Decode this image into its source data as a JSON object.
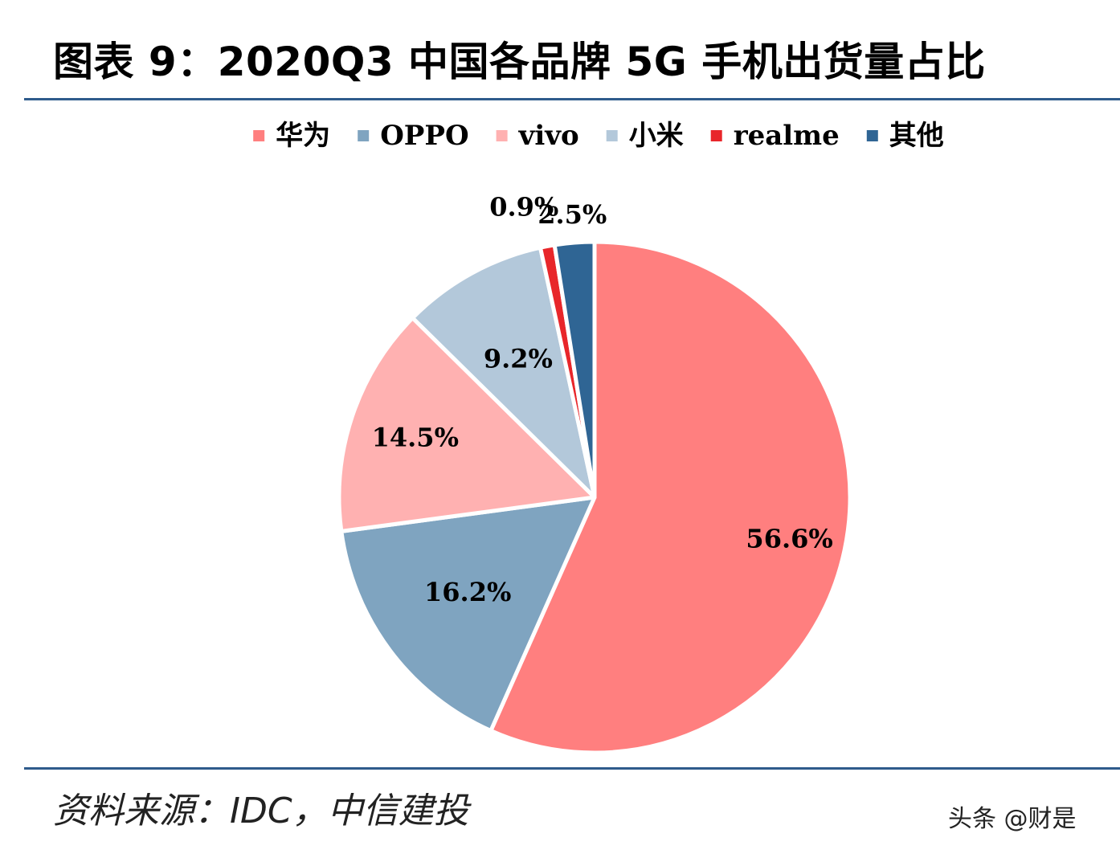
{
  "title": "图表 9：2020Q3 中国各品牌 5G 手机出货量占比",
  "source": "资料来源：IDC，中信建投",
  "watermark": "头条 @财是",
  "chart_data": {
    "type": "pie",
    "title": "图表 9：2020Q3 中国各品牌 5G 手机出货量占比",
    "legend_position": "top",
    "start_angle_deg": 0,
    "direction": "clockwise",
    "slices": [
      {
        "name": "华为",
        "value": 56.6,
        "label": "56.6%",
        "color": "#ff7f7f"
      },
      {
        "name": "OPPO",
        "value": 16.2,
        "label": "16.2%",
        "color": "#7fa4c0"
      },
      {
        "name": "vivo",
        "value": 14.5,
        "label": "14.5%",
        "color": "#ffb1b1"
      },
      {
        "name": "小米",
        "value": 9.2,
        "label": "9.2%",
        "color": "#b3c8da"
      },
      {
        "name": "realme",
        "value": 0.9,
        "label": "0.9%",
        "color": "#e8262a"
      },
      {
        "name": "其他",
        "value": 2.5,
        "label": "2.5%",
        "color": "#2f6594"
      }
    ]
  }
}
